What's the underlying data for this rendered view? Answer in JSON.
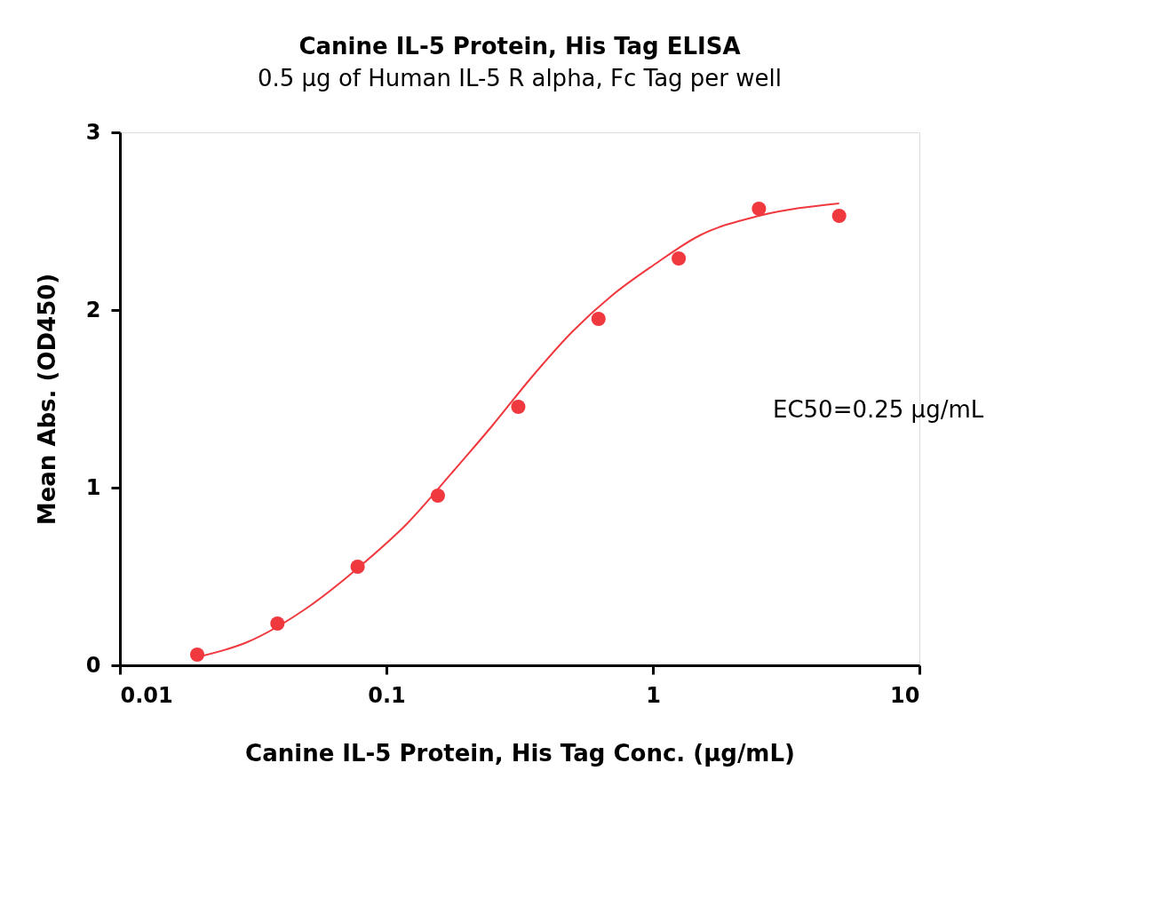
{
  "chart_data": {
    "type": "scatter",
    "title": "Canine IL-5 Protein, His Tag ELISA",
    "subtitle": "0.5 μg of Human IL-5 R alpha, Fc Tag per well",
    "xlabel": "Canine IL-5 Protein, His Tag Conc. (μg/mL)",
    "ylabel": "Mean Abs. (OD450)",
    "log": "x",
    "xlim": [
      0.01,
      10
    ],
    "xticks": [
      0.01,
      0.1,
      1,
      10
    ],
    "ylim": [
      0,
      3
    ],
    "yticks": [
      0,
      1,
      2,
      3
    ],
    "grid": false,
    "series": [
      {
        "color": "#f0393e",
        "marker": "circle",
        "x": [
          0.0195,
          0.039,
          0.078,
          0.156,
          0.3125,
          0.625,
          1.25,
          2.5,
          5
        ],
        "values": [
          0.06,
          0.235,
          0.555,
          0.955,
          1.455,
          1.95,
          2.29,
          2.57,
          2.53
        ]
      },
      {
        "type": "line",
        "color": "#f0393e",
        "line_style": "solid",
        "x": [
          0.02,
          0.03,
          0.05,
          0.08,
          0.12,
          0.18,
          0.25,
          0.35,
          0.5,
          0.7,
          1.0,
          1.5,
          2.5,
          5.0
        ],
        "values": [
          0.05,
          0.13,
          0.32,
          0.56,
          0.8,
          1.1,
          1.35,
          1.62,
          1.88,
          2.08,
          2.25,
          2.42,
          2.53,
          2.6
        ]
      }
    ],
    "annotations": [
      "EC50=0.25 μg/mL"
    ]
  }
}
